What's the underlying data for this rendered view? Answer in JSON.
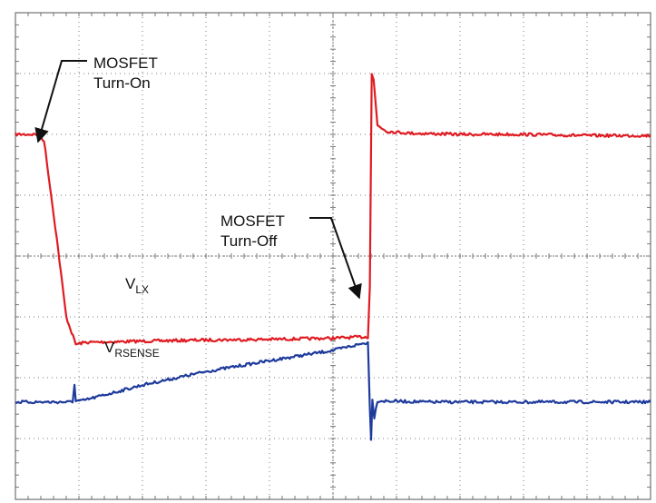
{
  "chart_data": {
    "type": "line",
    "title": "",
    "xlabel": "",
    "ylabel": "",
    "grid": true,
    "grid_divisions": {
      "x": 10,
      "y": 8,
      "minor_per_division": 5
    },
    "xlim": [
      0,
      10
    ],
    "ylim": [
      0,
      8
    ],
    "series": [
      {
        "name": "VLX",
        "color": "#e01b22",
        "points": [
          [
            0.0,
            6.0
          ],
          [
            0.35,
            6.0
          ],
          [
            0.45,
            5.9
          ],
          [
            0.65,
            4.3
          ],
          [
            0.8,
            3.0
          ],
          [
            0.95,
            2.55
          ],
          [
            1.1,
            2.58
          ],
          [
            2.0,
            2.6
          ],
          [
            3.0,
            2.62
          ],
          [
            4.0,
            2.63
          ],
          [
            5.0,
            2.65
          ],
          [
            5.45,
            2.67
          ],
          [
            5.55,
            2.67
          ],
          [
            5.58,
            3.5
          ],
          [
            5.61,
            7.0
          ],
          [
            5.64,
            6.9
          ],
          [
            5.7,
            6.15
          ],
          [
            5.85,
            6.05
          ],
          [
            6.2,
            6.02
          ],
          [
            7.0,
            6.0
          ],
          [
            8.0,
            6.0
          ],
          [
            9.0,
            5.98
          ],
          [
            10.0,
            5.98
          ]
        ]
      },
      {
        "name": "VRSENSE",
        "color": "#1e3a9c",
        "points": [
          [
            0.0,
            1.6
          ],
          [
            0.9,
            1.6
          ],
          [
            0.93,
            1.9
          ],
          [
            0.95,
            1.62
          ],
          [
            1.05,
            1.62
          ],
          [
            2.0,
            1.88
          ],
          [
            3.0,
            2.1
          ],
          [
            4.0,
            2.28
          ],
          [
            5.0,
            2.45
          ],
          [
            5.55,
            2.58
          ],
          [
            5.58,
            1.5
          ],
          [
            5.6,
            1.0
          ],
          [
            5.62,
            1.65
          ],
          [
            5.65,
            1.35
          ],
          [
            5.7,
            1.62
          ],
          [
            6.5,
            1.6
          ],
          [
            7.5,
            1.6
          ],
          [
            8.5,
            1.6
          ],
          [
            10.0,
            1.6
          ]
        ]
      }
    ],
    "annotations": {
      "turn_on": {
        "line1": "MOSFET",
        "line2": "Turn-On"
      },
      "turn_off": {
        "line1": "MOSFET",
        "line2": "Turn-Off"
      },
      "vlx": {
        "main": "V",
        "sub": "LX"
      },
      "vrsense": {
        "main": "V",
        "sub": "RSENSE"
      }
    }
  },
  "colors": {
    "grid": "#7a7a7a",
    "border": "#555555",
    "background": "#ffffff",
    "arrow": "#111111"
  }
}
